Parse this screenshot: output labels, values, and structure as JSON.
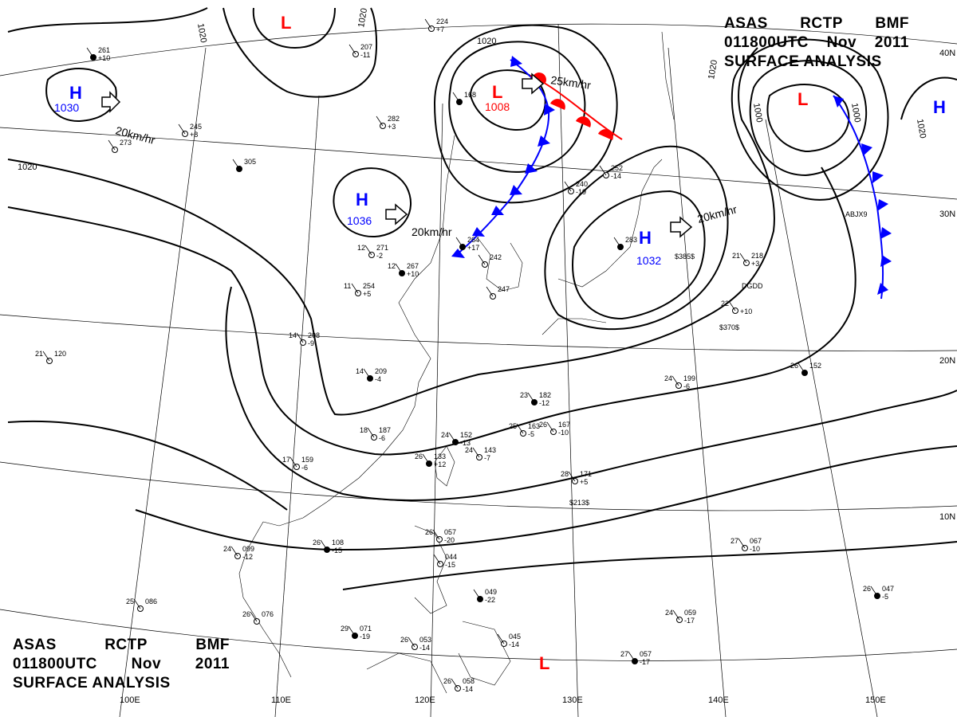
{
  "header": {
    "line1": [
      "ASAS",
      "RCTP",
      "BMF"
    ],
    "line2": [
      "011800UTC",
      "Nov",
      "2011"
    ],
    "line3": "SURFACE ANALYSIS"
  },
  "lat_labels": [
    "40N",
    "30N",
    "20N",
    "10N"
  ],
  "lon_labels": [
    "100E",
    "110E",
    "120E",
    "130E",
    "140E",
    "150E"
  ],
  "systems": [
    {
      "type": "H",
      "value": "1030",
      "motion": "20km/hr"
    },
    {
      "type": "H",
      "value": "1036",
      "motion": "20km/hr"
    },
    {
      "type": "L",
      "value": "1008",
      "motion": "25km/hr"
    },
    {
      "type": "H",
      "value": "1032",
      "motion": "20km/hr"
    },
    {
      "type": "L",
      "value": ""
    },
    {
      "type": "L",
      "value": ""
    },
    {
      "type": "H",
      "value": ""
    },
    {
      "type": "L",
      "value": ""
    }
  ],
  "isobar_labels": [
    "1020",
    "1020",
    "1020",
    "1020",
    "1020",
    "1020",
    "1000",
    "1000",
    "1020"
  ],
  "stations": [
    {
      "t": "26",
      "p": "133",
      "d": "+12"
    },
    {
      "t": "17",
      "p": "159",
      "d": "-6"
    },
    {
      "t": "24",
      "p": "099",
      "d": "-12"
    },
    {
      "t": "26",
      "p": "108",
      "d": "-15"
    },
    {
      "t": "25",
      "p": "086",
      "d": ""
    },
    {
      "t": "26",
      "p": "076",
      "d": ""
    },
    {
      "t": "29",
      "p": "071",
      "d": "-19"
    },
    {
      "t": "26",
      "p": "053",
      "d": "-14"
    },
    {
      "t": "26",
      "p": "058",
      "d": "-14"
    },
    {
      "t": "27",
      "p": "057",
      "d": "-17"
    },
    {
      "t": "27",
      "p": "067",
      "d": "-10"
    },
    {
      "t": "24",
      "p": "059",
      "d": "-17"
    },
    {
      "t": "26",
      "p": "047",
      "d": "-5"
    },
    {
      "t": "26",
      "p": "057",
      "d": "-20"
    },
    {
      "t": "",
      "p": "044",
      "d": "-15"
    },
    {
      "t": "",
      "p": "049",
      "d": "-22"
    },
    {
      "t": "",
      "p": "045",
      "d": "-14"
    },
    {
      "t": "28",
      "p": "171",
      "d": "+5"
    },
    {
      "t": "23",
      "p": "182",
      "d": "-12"
    },
    {
      "t": "25",
      "p": "163",
      "d": "-5"
    },
    {
      "t": "26",
      "p": "167",
      "d": "-10"
    },
    {
      "t": "24",
      "p": "152",
      "d": "-13"
    },
    {
      "t": "24",
      "p": "143",
      "d": "-7"
    },
    {
      "t": "18",
      "p": "187",
      "d": "-6"
    },
    {
      "t": "14",
      "p": "209",
      "d": "-4"
    },
    {
      "t": "14",
      "p": "208",
      "d": "-9"
    },
    {
      "t": "11",
      "p": "254",
      "d": "+5"
    },
    {
      "t": "12",
      "p": "267",
      "d": "+10"
    },
    {
      "t": "12",
      "p": "271",
      "d": "-2"
    },
    {
      "t": "",
      "p": "282",
      "d": "+3"
    },
    {
      "t": "",
      "p": "305",
      "d": ""
    },
    {
      "t": "",
      "p": "245",
      "d": "+8"
    },
    {
      "t": "",
      "p": "273",
      "d": ""
    },
    {
      "t": "",
      "p": "261",
      "d": "+10"
    },
    {
      "t": "",
      "p": "224",
      "d": "+7"
    },
    {
      "t": "",
      "p": "207",
      "d": "-11"
    },
    {
      "t": "",
      "p": "168",
      "d": ""
    },
    {
      "t": "",
      "p": "252",
      "d": "-14"
    },
    {
      "t": "",
      "p": "240",
      "d": "-19"
    },
    {
      "t": "",
      "p": "283",
      "d": ""
    },
    {
      "t": "",
      "p": "242",
      "d": ""
    },
    {
      "t": "",
      "p": "247",
      "d": ""
    },
    {
      "t": "",
      "p": "264",
      "d": "+17"
    },
    {
      "t": "22",
      "p": "",
      "d": "+10"
    },
    {
      "t": "21",
      "p": "218",
      "d": "+3"
    },
    {
      "t": "26",
      "p": "152",
      "d": ""
    },
    {
      "t": "24",
      "p": "199",
      "d": "-6"
    },
    {
      "t": "21",
      "p": "120",
      "d": ""
    }
  ],
  "station_extras": [
    "$213$",
    "$370$",
    "$385$",
    "DGDD",
    "ABJX9"
  ],
  "colors": {
    "isobar": "#000000",
    "high": "#0000ff",
    "low": "#ff0000",
    "front_cold": "#0000ff",
    "front_warm": "#ff0000",
    "grid": "#000000"
  }
}
